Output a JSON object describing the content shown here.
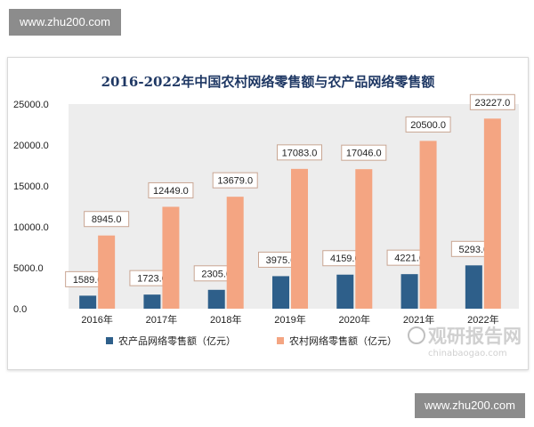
{
  "watermark": {
    "top": "www.zhu200.com",
    "bottom": "www.zhu200.com",
    "logo_text": "观研报告网",
    "logo_url": "chinabaogao.com"
  },
  "chart_data": {
    "type": "bar",
    "title": "2016-2022年中国农村网络零售额与农产品网络零售额",
    "categories": [
      "2016年",
      "2017年",
      "2018年",
      "2019年",
      "2020年",
      "2021年",
      "2022年"
    ],
    "series": [
      {
        "name": "农产品网络零售额（亿元）",
        "values": [
          1589.0,
          1723.0,
          2305.0,
          3975.0,
          4159.0,
          4221.0,
          5293.0
        ],
        "color": "#2e5f8a"
      },
      {
        "name": "农村网络零售额（亿元）",
        "values": [
          8945.0,
          12449.0,
          13679.0,
          17083.0,
          17046.0,
          20500.0,
          23227.0
        ],
        "color": "#f4a582"
      }
    ],
    "y_ticks": [
      "0.0",
      "5000.0",
      "10000.0",
      "15000.0",
      "20000.0",
      "25000.0"
    ],
    "ylim": [
      0,
      25000
    ],
    "legend_position": "bottom",
    "background_color": "#ededed",
    "label_border_color": "#c9a693",
    "grid": false
  }
}
